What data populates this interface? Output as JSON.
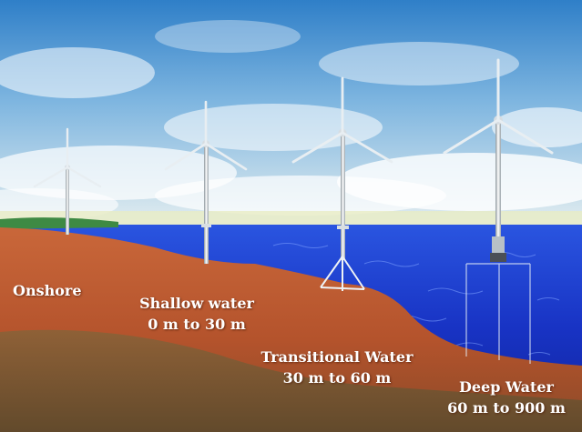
{
  "zones": [
    {
      "id": "onshore",
      "name": "Onshore",
      "depth": ""
    },
    {
      "id": "shallow",
      "name": "Shallow water",
      "depth": "0 m to 30 m"
    },
    {
      "id": "transitional",
      "name": "Transitional Water",
      "depth": "30 m to 60 m"
    },
    {
      "id": "deep",
      "name": "Deep Water",
      "depth": "60 m to 900 m"
    }
  ],
  "turbines": [
    {
      "zone": "onshore",
      "foundation": "land-base"
    },
    {
      "zone": "shallow",
      "foundation": "monopile"
    },
    {
      "zone": "transitional",
      "foundation": "tripod"
    },
    {
      "zone": "deep",
      "foundation": "floating-platform"
    }
  ],
  "colors": {
    "sky_top": "#2f7fc8",
    "sky_bottom": "#cfe3ee",
    "sea": "#1a38c8",
    "seabed": "#b8552e",
    "ground": "#7a5a36",
    "label": "#ffffff"
  }
}
